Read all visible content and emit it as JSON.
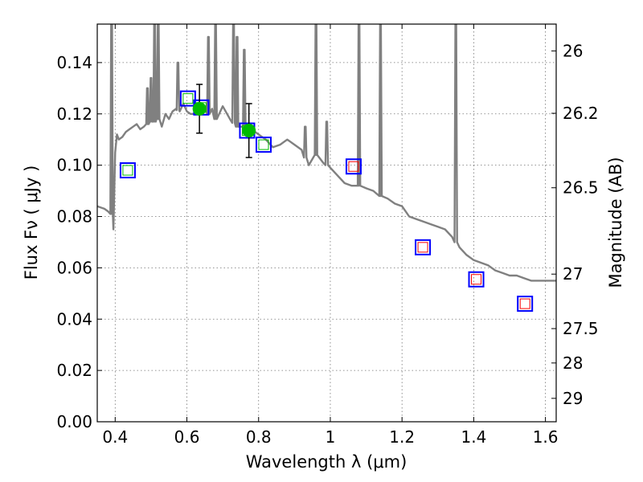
{
  "chart_data": {
    "type": "scatter",
    "title": "",
    "xlabel": "Wavelength  λ (μm)",
    "ylabel": "Flux  Fν ( μJy )",
    "y2label": "Magnitude (AB)",
    "xlim": [
      0.35,
      1.63
    ],
    "ylim": [
      0.0,
      0.155
    ],
    "grid": true,
    "x_ticks": [
      0.4,
      0.6,
      0.8,
      1.0,
      1.2,
      1.4,
      1.6
    ],
    "x_tick_labels": [
      "0.4",
      "0.6",
      "0.8",
      "1",
      "1.2",
      "1.4",
      "1.6"
    ],
    "y_ticks": [
      0.0,
      0.02,
      0.04,
      0.06,
      0.08,
      0.1,
      0.12,
      0.14
    ],
    "y_tick_labels": [
      "0.00",
      "0.02",
      "0.04",
      "0.06",
      "0.08",
      "0.10",
      "0.12",
      "0.14"
    ],
    "y2_ticks": [
      26,
      26.2,
      26.5,
      27,
      27.5,
      28,
      29
    ],
    "y2_tick_labels": [
      "26",
      "26.2",
      "26.5",
      "27",
      "27.5",
      "28",
      "29"
    ],
    "series": [
      {
        "kind": "model-spectrum",
        "color": "#808080",
        "x": [
          0.35,
          0.37,
          0.38,
          0.39,
          0.395,
          0.4,
          0.405,
          0.41,
          0.42,
          0.43,
          0.44,
          0.45,
          0.46,
          0.47,
          0.48,
          0.49,
          0.5,
          0.51,
          0.515,
          0.52,
          0.53,
          0.54,
          0.55,
          0.56,
          0.57,
          0.58,
          0.59,
          0.6,
          0.61,
          0.62,
          0.63,
          0.64,
          0.65,
          0.66,
          0.67,
          0.68,
          0.69,
          0.7,
          0.72,
          0.74,
          0.76,
          0.78,
          0.8,
          0.82,
          0.84,
          0.86,
          0.88,
          0.9,
          0.92,
          0.94,
          0.96,
          0.98,
          1.0,
          1.02,
          1.04,
          1.06,
          1.08,
          1.1,
          1.12,
          1.14,
          1.16,
          1.18,
          1.2,
          1.22,
          1.24,
          1.26,
          1.28,
          1.3,
          1.32,
          1.34,
          1.36,
          1.38,
          1.4,
          1.42,
          1.44,
          1.46,
          1.48,
          1.5,
          1.52,
          1.54,
          1.56,
          1.58,
          1.6,
          1.63
        ],
        "y": [
          0.084,
          0.083,
          0.082,
          0.081,
          0.075,
          0.105,
          0.112,
          0.11,
          0.111,
          0.113,
          0.114,
          0.115,
          0.116,
          0.114,
          0.115,
          0.116,
          0.117,
          0.117,
          0.118,
          0.118,
          0.115,
          0.12,
          0.118,
          0.121,
          0.122,
          0.121,
          0.124,
          0.121,
          0.12,
          0.12,
          0.123,
          0.124,
          0.123,
          0.12,
          0.122,
          0.118,
          0.12,
          0.123,
          0.118,
          0.115,
          0.115,
          0.114,
          0.112,
          0.11,
          0.107,
          0.108,
          0.11,
          0.108,
          0.106,
          0.1,
          0.104,
          0.101,
          0.099,
          0.096,
          0.093,
          0.092,
          0.092,
          0.091,
          0.09,
          0.088,
          0.087,
          0.085,
          0.084,
          0.08,
          0.079,
          0.078,
          0.077,
          0.076,
          0.075,
          0.072,
          0.068,
          0.065,
          0.063,
          0.062,
          0.061,
          0.059,
          0.058,
          0.057,
          0.057,
          0.056,
          0.055,
          0.055,
          0.055,
          0.055
        ],
        "emission_lines": [
          {
            "x": 0.39,
            "peak": 0.155
          },
          {
            "x": 0.49,
            "peak": 0.13
          },
          {
            "x": 0.5,
            "peak": 0.134
          },
          {
            "x": 0.51,
            "peak": 0.155
          },
          {
            "x": 0.52,
            "peak": 0.155
          },
          {
            "x": 0.575,
            "peak": 0.14
          },
          {
            "x": 0.66,
            "peak": 0.15
          },
          {
            "x": 0.68,
            "peak": 0.155
          },
          {
            "x": 0.73,
            "peak": 0.155
          },
          {
            "x": 0.74,
            "peak": 0.15
          },
          {
            "x": 0.76,
            "peak": 0.145
          },
          {
            "x": 0.93,
            "peak": 0.115
          },
          {
            "x": 0.96,
            "peak": 0.155
          },
          {
            "x": 0.99,
            "peak": 0.117
          },
          {
            "x": 1.08,
            "peak": 0.155
          },
          {
            "x": 1.14,
            "peak": 0.155
          },
          {
            "x": 1.35,
            "peak": 0.155
          }
        ]
      },
      {
        "kind": "observed-photometry",
        "color": "#00bb00",
        "points": [
          {
            "x": 0.635,
            "y": 0.122,
            "yerr": 0.0095
          },
          {
            "x": 0.773,
            "y": 0.1135,
            "yerr": 0.0105
          }
        ]
      },
      {
        "kind": "model-photometry",
        "outer_color": "#0000ff",
        "points": [
          {
            "x": 0.435,
            "y": 0.098,
            "inner": "#00bb00"
          },
          {
            "x": 0.603,
            "y": 0.126,
            "inner": "#00bb00"
          },
          {
            "x": 0.64,
            "y": 0.1225,
            "inner": "#00bb00"
          },
          {
            "x": 0.768,
            "y": 0.1135,
            "inner": "#00bb00"
          },
          {
            "x": 0.814,
            "y": 0.108,
            "inner": "#00bb00"
          },
          {
            "x": 1.065,
            "y": 0.0995,
            "inner": "#ff0000"
          },
          {
            "x": 1.258,
            "y": 0.068,
            "inner": "#ff0000"
          },
          {
            "x": 1.407,
            "y": 0.0555,
            "inner": "#ff0000"
          },
          {
            "x": 1.543,
            "y": 0.046,
            "inner": "#ff0000"
          }
        ]
      }
    ]
  }
}
